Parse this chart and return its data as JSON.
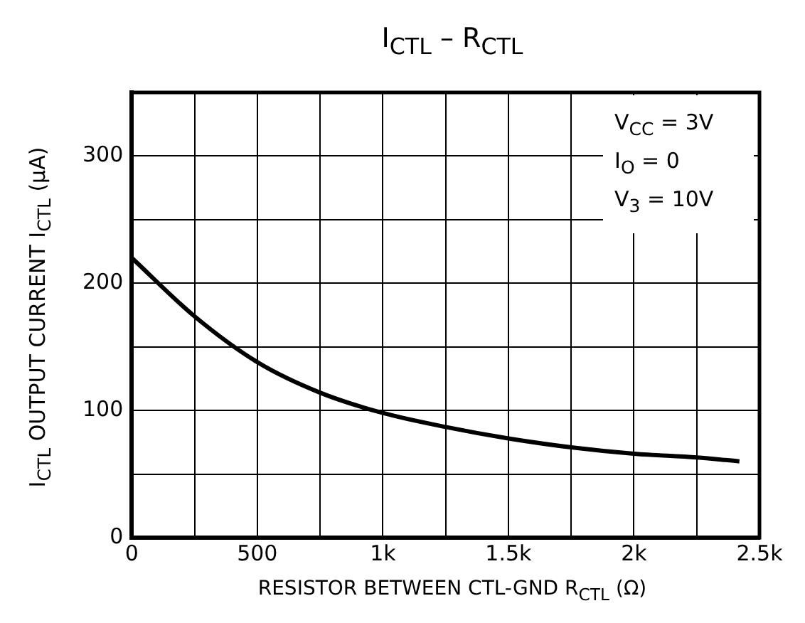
{
  "chart_data": {
    "type": "line",
    "title": "I$_{CTL}$ – R$_{CTL}$",
    "xlabel": "RESISTOR BETWEEN CTL-GND   R$_{CTL}$   (Ω)",
    "ylabel": "I$_{CTL}$ OUTPUT CURRENT   I$_{CTL}$   (μA)",
    "annotations": [
      "V$_{CC}$ = 3V",
      "I$_{O}$ = 0",
      "V$_{3}$ = 10V"
    ],
    "x": [
      0,
      250,
      500,
      750,
      1000,
      1250,
      1500,
      1750,
      2000,
      2250,
      2420
    ],
    "series": [
      {
        "color": "#000000",
        "values": [
          220,
          174,
          138,
          114,
          98,
          87,
          78,
          71,
          66,
          63,
          60
        ]
      }
    ],
    "xlim": [
      0,
      2500
    ],
    "xticks": [
      0,
      {
        "value": 250,
        "label": null
      },
      500,
      {
        "value": 750,
        "label": null
      },
      {
        "value": 1000,
        "label": "1k"
      },
      {
        "value": 1250,
        "label": null
      },
      {
        "value": 1500,
        "label": "1.5k"
      },
      {
        "value": 1750,
        "label": null
      },
      {
        "value": 2000,
        "label": "2k"
      },
      {
        "value": 2250,
        "label": null
      },
      {
        "value": 2500,
        "label": "2.5k"
      }
    ],
    "ylim": [
      0,
      350
    ],
    "yticks": [
      0,
      {
        "value": 50,
        "label": null
      },
      100,
      {
        "value": 150,
        "label": null
      },
      200,
      {
        "value": 250,
        "label": null
      },
      300,
      {
        "value": 350,
        "label": null
      }
    ],
    "grid": true,
    "legend": false,
    "marker": "none",
    "line_style": "solid"
  }
}
